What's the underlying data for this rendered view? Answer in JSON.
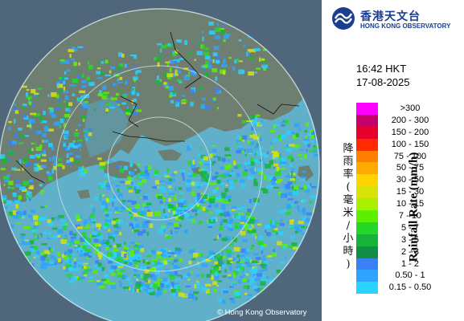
{
  "organization": {
    "name_zh": "香港天文台",
    "name_en": "HONG KONG OBSERVATORY"
  },
  "timestamp": {
    "time": "16:42 HKT",
    "date": "17-08-2025"
  },
  "legend": {
    "title_en": "Rainfall Rate (mm/h)",
    "title_zh": [
      "降",
      "雨",
      "率",
      "(",
      "毫",
      "米",
      "/",
      "小",
      "時",
      ")"
    ],
    "items": [
      {
        "label": ">300",
        "color": "#ff00ff"
      },
      {
        "label": "200 - 300",
        "color": "#c6006b"
      },
      {
        "label": "150 - 200",
        "color": "#e8002a"
      },
      {
        "label": "100 - 150",
        "color": "#ff2a00"
      },
      {
        "label": "75 - 100",
        "color": "#ff7f00"
      },
      {
        "label": "50 - 75",
        "color": "#ffaa00"
      },
      {
        "label": "30 - 50",
        "color": "#ffd400"
      },
      {
        "label": "15 - 30",
        "color": "#d8e20b"
      },
      {
        "label": "10 - 15",
        "color": "#a6f000"
      },
      {
        "label": "7 - 10",
        "color": "#5cf000"
      },
      {
        "label": "5 - 7",
        "color": "#25d828"
      },
      {
        "label": "3 - 5",
        "color": "#17b43a"
      },
      {
        "label": "2 - 3",
        "color": "#0f8f44"
      },
      {
        "label": "1 - 2",
        "color": "#3b7ff5"
      },
      {
        "label": "0.50 - 1",
        "color": "#2ea4ff"
      },
      {
        "label": "0.15 - 0.50",
        "color": "#2ad2ff"
      }
    ]
  },
  "map": {
    "credit": "© Hong Kong Observatory",
    "land_color": "#6e7f72",
    "sea_color": "#5fb0c8",
    "outer_color": "#50667a",
    "ring_color": "#cfe2ea"
  }
}
